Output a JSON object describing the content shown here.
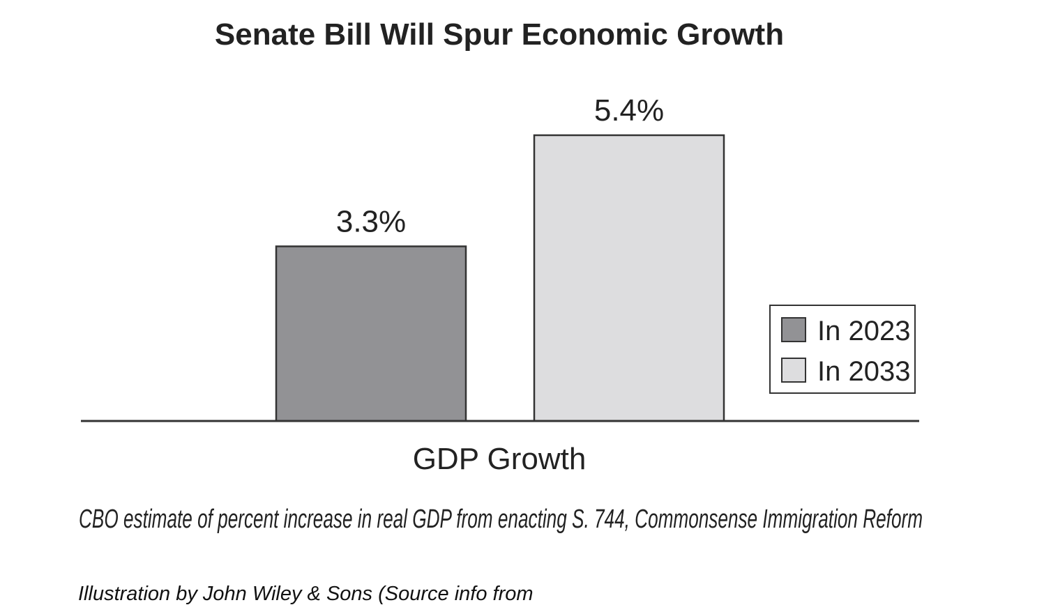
{
  "chart_data": {
    "type": "bar",
    "title": "Senate Bill Will Spur Economic Growth",
    "categories": [
      "GDP Growth"
    ],
    "series": [
      {
        "name": "In 2023",
        "values": [
          3.3
        ],
        "label": "3.3%",
        "color": "#929295"
      },
      {
        "name": "In 2033",
        "values": [
          5.4
        ],
        "label": "5.4%",
        "color": "#dddddf"
      }
    ],
    "xlabel": "GDP Growth",
    "ylabel": "",
    "ylim": [
      0,
      5.4
    ],
    "grid": false,
    "legend": "right",
    "caption": "CBO estimate of percent increase in real GDP from enacting S. 744, Commonsense Immigration Reform",
    "credit": "Illustration by John Wiley & Sons (Source info from"
  }
}
